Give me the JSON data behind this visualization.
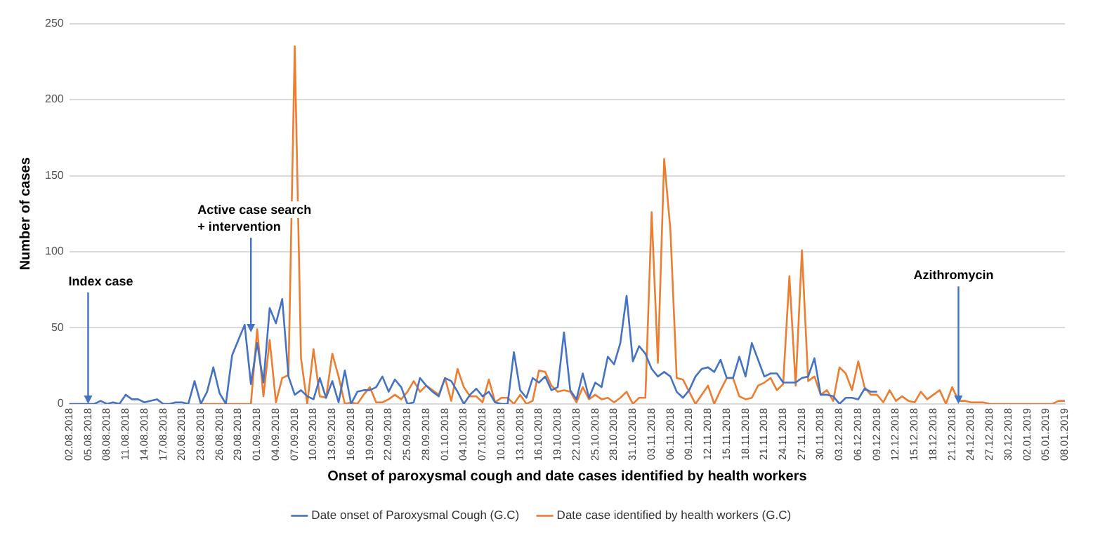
{
  "chart_data": {
    "type": "line",
    "xlabel": "Onset of paroxysmal cough and date cases identified by health workers",
    "ylabel": "Number of cases",
    "categories": [
      "02.08.2018",
      null,
      null,
      "05.08.2018",
      null,
      null,
      "08.08.2018",
      null,
      null,
      "11.08.2018",
      null,
      null,
      "14.08.2018",
      null,
      null,
      "17.08.2018",
      null,
      null,
      "20.08.2018",
      null,
      null,
      "23.08.2018",
      null,
      null,
      "26.08.2018",
      null,
      null,
      "29.08.2018",
      null,
      null,
      "01.09.2018",
      null,
      null,
      "04.09.2018",
      null,
      null,
      "07.09.2018",
      null,
      null,
      "10.09.2018",
      null,
      null,
      "13.09.2018",
      null,
      null,
      "16.09.2018",
      null,
      null,
      "19.09.2018",
      null,
      null,
      "22.09.2018",
      null,
      null,
      "25.09.2018",
      null,
      null,
      "28.09.2018",
      null,
      null,
      "01.10.2018",
      null,
      null,
      "04.10.2018",
      null,
      null,
      "07.10.2018",
      null,
      null,
      "10.10.2018",
      null,
      null,
      "13.10.2018",
      null,
      null,
      "16.10.2018",
      null,
      null,
      "19.10.2018",
      null,
      null,
      "22.10.2018",
      null,
      null,
      "25.10.2018",
      null,
      null,
      "28.10.2018",
      null,
      null,
      "31.10.2018",
      null,
      null,
      "03.11.2018",
      null,
      null,
      "06.11.2018",
      null,
      null,
      "09.11.2018",
      null,
      null,
      "12.11.2018",
      null,
      null,
      "15.11.2018",
      null,
      null,
      "18.11.2018",
      null,
      null,
      "21.11.2018",
      null,
      null,
      "24.11.2018",
      null,
      null,
      "27.11.2018",
      null,
      null,
      "30.11.2018",
      null,
      null,
      "03.12.2018",
      null,
      null,
      "06.12.2018",
      null,
      null,
      "09.12.2018",
      null,
      null,
      "12.12.2018",
      null,
      null,
      "15.12.2018",
      null,
      null,
      "18.12.2018",
      null,
      null,
      "21.12.2018",
      null,
      null,
      "24.12.2018",
      null,
      null,
      "27.12.2018",
      null,
      null,
      "30.12.2018",
      null,
      null,
      "02.01.2019",
      null,
      null,
      "05.01.2019",
      null,
      null,
      "08.01.2019"
    ],
    "series": [
      {
        "name": "Date onset of Paroxysmal Cough (G.C)",
        "color": "#4472c4",
        "values": [
          0,
          0,
          0,
          0,
          0,
          2,
          0,
          1,
          0,
          6,
          3,
          3,
          1,
          2,
          3,
          0,
          0,
          1,
          1,
          0,
          15,
          0,
          8,
          24,
          7,
          0,
          32,
          42,
          52,
          13,
          40,
          14,
          63,
          53,
          69,
          18,
          6,
          9,
          5,
          3,
          17,
          4,
          15,
          1,
          22,
          0,
          8,
          9,
          9,
          11,
          18,
          8,
          16,
          11,
          0,
          1,
          17,
          12,
          8,
          5,
          17,
          15,
          8,
          0,
          6,
          10,
          5,
          8,
          1,
          0,
          0,
          34,
          9,
          4,
          17,
          14,
          18,
          9,
          11,
          47,
          9,
          3,
          20,
          4,
          14,
          11,
          31,
          26,
          40,
          71,
          28,
          38,
          33,
          23,
          18,
          21,
          18,
          8,
          4,
          9,
          18,
          23,
          24,
          21,
          29,
          17,
          17,
          31,
          18,
          40,
          29,
          18,
          20,
          20,
          14,
          14,
          14,
          17,
          18,
          30,
          6,
          6,
          5,
          0,
          4,
          4,
          3,
          10,
          8,
          8,
          null,
          null,
          null,
          null,
          null,
          null,
          null,
          null,
          null,
          null,
          null,
          null,
          null,
          null,
          null,
          null,
          null,
          null,
          null,
          null,
          null,
          null,
          null,
          null,
          null,
          null,
          null,
          null,
          null,
          null
        ]
      },
      {
        "name": "Date case identified by health workers (G.C)",
        "color": "#ed7d31",
        "values": [
          null,
          null,
          null,
          null,
          null,
          null,
          null,
          null,
          null,
          null,
          null,
          null,
          null,
          null,
          null,
          null,
          null,
          null,
          null,
          null,
          null,
          0,
          0,
          0,
          0,
          0,
          0,
          0,
          0,
          0,
          49,
          5,
          42,
          1,
          17,
          19,
          235,
          30,
          0,
          36,
          5,
          4,
          33,
          18,
          0,
          1,
          0,
          6,
          11,
          1,
          1,
          3,
          6,
          3,
          8,
          15,
          8,
          12,
          9,
          6,
          17,
          2,
          23,
          11,
          5,
          5,
          1,
          16,
          1,
          4,
          4,
          0,
          6,
          0,
          2,
          22,
          21,
          12,
          8,
          9,
          8,
          1,
          11,
          3,
          6,
          3,
          4,
          1,
          4,
          8,
          0,
          4,
          4,
          126,
          27,
          161,
          114,
          17,
          16,
          8,
          0,
          6,
          12,
          0,
          9,
          17,
          17,
          5,
          3,
          4,
          12,
          14,
          17,
          9,
          13,
          84,
          12,
          101,
          15,
          18,
          6,
          9,
          2,
          24,
          20,
          9,
          28,
          11,
          6,
          6,
          1,
          9,
          2,
          5,
          2,
          1,
          8,
          3,
          6,
          9,
          0,
          11,
          2,
          2,
          1,
          1,
          1,
          0,
          0,
          0,
          0,
          0,
          0,
          0,
          0,
          0,
          0,
          0,
          2,
          2
        ]
      }
    ],
    "ylim": [
      0,
      250
    ],
    "yticks": [
      0,
      50,
      100,
      150,
      200,
      250
    ],
    "grid": "y",
    "legend": "bottom",
    "marker": "none",
    "line_style": "solid",
    "annotations": [
      {
        "text": "Index case",
        "x": "05.08.2018",
        "y": 0
      },
      {
        "text": "Active case search + intervention",
        "y": 47
      },
      {
        "text": "Azithromycin",
        "y": 0
      }
    ]
  }
}
